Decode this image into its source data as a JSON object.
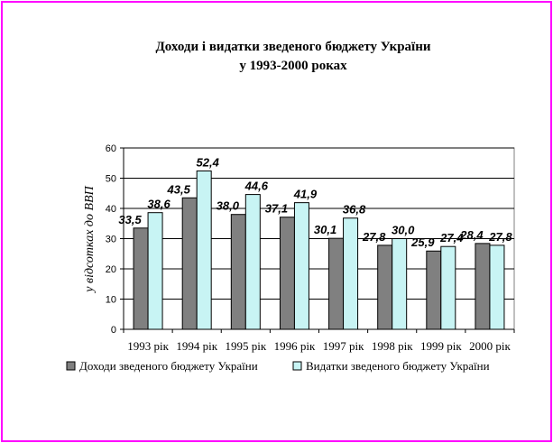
{
  "chart_data": {
    "type": "bar",
    "title_line1": "Доходи і видатки зведеного бюджету України",
    "title_line2": "у 1993-2000 роках",
    "ylabel": "у відсотках до ВВП",
    "xlabel": "",
    "ylim": [
      0,
      60
    ],
    "yticks": [
      0,
      10,
      20,
      30,
      40,
      50,
      60
    ],
    "grid": true,
    "legend_position": "bottom",
    "categories": [
      "1993 рік",
      "1994 рік",
      "1995 рік",
      "1996 рік",
      "1997 рік",
      "1998 рік",
      "1999 рік",
      "2000 рік"
    ],
    "series": [
      {
        "name": "Доходи зведеного бюджету України",
        "color": "#808080",
        "values": [
          33.5,
          43.5,
          38.0,
          37.1,
          30.1,
          27.8,
          25.9,
          28.4
        ],
        "labels": [
          "33,5",
          "43,5",
          "38,0",
          "37,1",
          "30,1",
          "27,8",
          "25,9",
          "28,4"
        ]
      },
      {
        "name": "Видатки зведеного бюджету України",
        "color": "#c8f4f4",
        "values": [
          38.6,
          52.4,
          44.6,
          41.9,
          36.8,
          30.0,
          27.4,
          27.8
        ],
        "labels": [
          "38,6",
          "52,4",
          "44,6",
          "41,9",
          "36,8",
          "30,0",
          "27,4",
          "27,8"
        ]
      }
    ]
  }
}
